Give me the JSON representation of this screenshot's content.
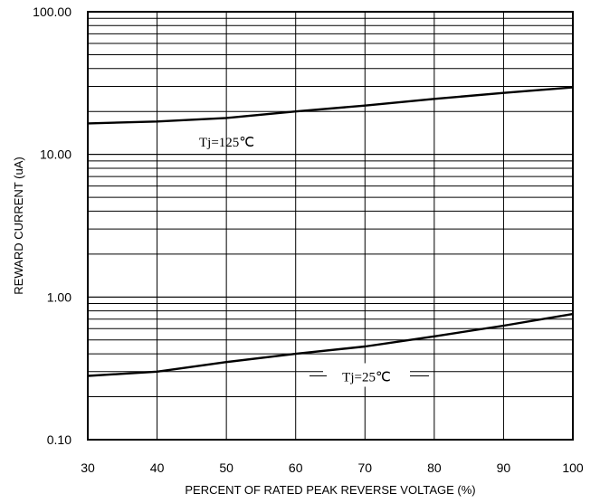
{
  "chart_data": {
    "type": "line",
    "xlabel": "PERCENT OF RATED PEAK REVERSE VOLTAGE (%)",
    "ylabel": "REWARD CURRENT (uA)",
    "xlim": [
      30,
      100
    ],
    "ylim": [
      0.1,
      100
    ],
    "yscale": "log",
    "grid": true,
    "x_ticks": [
      30,
      40,
      50,
      60,
      70,
      80,
      90,
      100
    ],
    "x_tick_labels": [
      "30",
      "40",
      "50",
      "60",
      "70",
      "80",
      "90",
      "100"
    ],
    "y_ticks": [
      0.1,
      1,
      10,
      100
    ],
    "y_tick_labels": [
      "0.10",
      "1.00",
      "10.00",
      "100.00"
    ],
    "series": [
      {
        "name": "Tj=125℃",
        "x": [
          30,
          40,
          50,
          60,
          70,
          80,
          90,
          100
        ],
        "values": [
          16.5,
          17.0,
          18.0,
          20.0,
          22.0,
          24.5,
          27.0,
          29.5
        ]
      },
      {
        "name": "Tj=25℃",
        "x": [
          30,
          40,
          50,
          60,
          70,
          80,
          90,
          100
        ],
        "values": [
          0.28,
          0.3,
          0.35,
          0.4,
          0.45,
          0.53,
          0.63,
          0.76
        ]
      }
    ]
  }
}
